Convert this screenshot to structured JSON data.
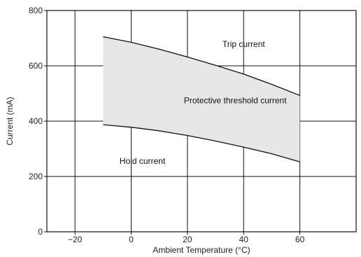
{
  "chart_data": {
    "type": "area",
    "xlabel": "Ambient Temperature (°C)",
    "ylabel": "Current (mA)",
    "xlim": [
      -30,
      80
    ],
    "ylim": [
      0,
      800
    ],
    "xticks": [
      -20,
      0,
      20,
      40,
      60
    ],
    "yticks": [
      0,
      200,
      400,
      600,
      800
    ],
    "x_tick_labels": [
      "−20",
      "0",
      "20",
      "40",
      "60"
    ],
    "y_tick_labels": [
      "0",
      "200",
      "400",
      "600",
      "800"
    ],
    "grid": true,
    "series": [
      {
        "name": "Trip current",
        "x": [
          -10,
          0,
          10,
          20,
          30,
          40,
          50,
          60
        ],
        "y": [
          705,
          685,
          660,
          632,
          602,
          570,
          533,
          493
        ]
      },
      {
        "name": "Hold current",
        "x": [
          -10,
          0,
          10,
          20,
          30,
          40,
          50,
          60
        ],
        "y": [
          387,
          378,
          365,
          348,
          328,
          306,
          282,
          253
        ]
      }
    ],
    "fill_between": {
      "upper": "Trip current",
      "lower": "Hold current",
      "color": "#e6e6e6"
    },
    "annotations": [
      {
        "text": "Trip current",
        "x": 40,
        "y": 668
      },
      {
        "text": "Protective threshold current",
        "x": 37,
        "y": 465
      },
      {
        "text": "Hold current",
        "x": 4,
        "y": 245
      }
    ]
  }
}
